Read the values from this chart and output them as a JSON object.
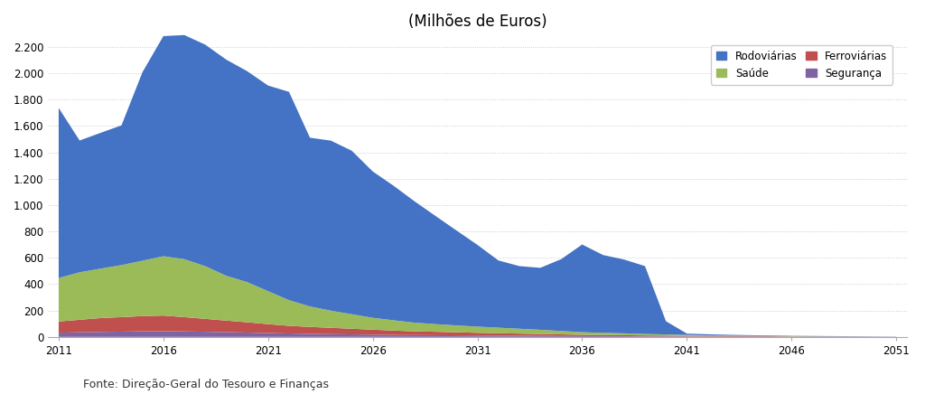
{
  "title": "(Milhões de Euros)",
  "footnote": "Fonte: Direção-Geral do Tesouro e Finanças",
  "years": [
    2011,
    2012,
    2013,
    2014,
    2015,
    2016,
    2017,
    2018,
    2019,
    2020,
    2021,
    2022,
    2023,
    2024,
    2025,
    2026,
    2027,
    2028,
    2029,
    2030,
    2031,
    2032,
    2033,
    2034,
    2035,
    2036,
    2037,
    2038,
    2039,
    2040,
    2041,
    2042,
    2043,
    2044,
    2045,
    2046,
    2047,
    2048,
    2049,
    2050,
    2051
  ],
  "rodoviarias": [
    1290,
    1000,
    1030,
    1060,
    1430,
    1670,
    1700,
    1680,
    1640,
    1600,
    1560,
    1580,
    1280,
    1290,
    1240,
    1110,
    1020,
    920,
    820,
    720,
    620,
    510,
    475,
    470,
    545,
    665,
    590,
    560,
    515,
    100,
    10,
    8,
    6,
    5,
    4,
    3,
    3,
    2,
    2,
    1,
    1
  ],
  "saude": [
    330,
    360,
    375,
    395,
    420,
    450,
    440,
    400,
    340,
    305,
    250,
    195,
    155,
    130,
    110,
    90,
    78,
    66,
    58,
    52,
    47,
    42,
    37,
    32,
    26,
    20,
    17,
    14,
    11,
    9,
    7,
    5,
    4,
    3,
    2,
    2,
    1,
    1,
    1,
    0,
    0
  ],
  "ferroviarias": [
    85,
    95,
    105,
    110,
    115,
    118,
    108,
    98,
    88,
    78,
    68,
    58,
    53,
    48,
    43,
    38,
    33,
    28,
    26,
    23,
    20,
    18,
    16,
    14,
    12,
    10,
    9,
    8,
    7,
    6,
    5,
    4,
    4,
    3,
    3,
    2,
    2,
    2,
    1,
    1,
    1
  ],
  "seguranca": [
    32,
    35,
    38,
    40,
    43,
    44,
    42,
    39,
    36,
    33,
    29,
    26,
    23,
    21,
    19,
    17,
    15,
    14,
    13,
    12,
    11,
    10,
    9,
    8,
    7,
    6,
    5,
    5,
    4,
    4,
    3,
    3,
    2,
    2,
    2,
    1,
    1,
    1,
    1,
    1,
    0
  ],
  "colors": {
    "rodoviarias": "#4472C4",
    "saude": "#9BBB59",
    "ferroviarias": "#C0504D",
    "seguranca": "#8064A2"
  },
  "legend_labels": [
    "Rodoviárias",
    "Saúde",
    "Ferroviárias",
    "Segurança"
  ],
  "ylim": [
    0,
    2300
  ],
  "yticks": [
    0,
    200,
    400,
    600,
    800,
    1000,
    1200,
    1400,
    1600,
    1800,
    2000,
    2200
  ],
  "xlim": [
    2010.5,
    2051.5
  ],
  "xticks": [
    2011,
    2016,
    2021,
    2026,
    2031,
    2036,
    2041,
    2046,
    2051
  ],
  "background_color": "#FFFFFF",
  "grid_color": "#BBBBBB",
  "title_fontsize": 12,
  "footnote_fontsize": 9,
  "tick_fontsize": 8.5
}
